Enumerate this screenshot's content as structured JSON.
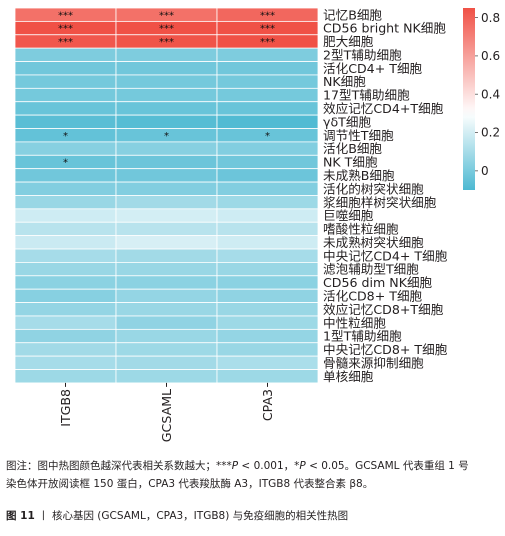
{
  "chart_data": {
    "type": "heatmap",
    "columns": [
      "ITGB8",
      "GCSAML",
      "CPA3"
    ],
    "rows": [
      "记忆B细胞",
      "CD56 bright NK细胞",
      "肥大细胞",
      "2型T辅助细胞",
      "活化CD4+ T细胞",
      "NK细胞",
      "17型T辅助细胞",
      "效应记忆CD4+T细胞",
      "γδT细胞",
      "调节性T细胞",
      "活化B细胞",
      "NK T细胞",
      "未成熟B细胞",
      "活化的树突状细胞",
      "浆细胞样树突状细胞",
      "巨噬细胞",
      "嗜酸性粒细胞",
      "未成熟树突状细胞",
      "中央记忆CD4+ T细胞",
      "滤泡辅助型T细胞",
      "CD56 dim NK细胞",
      "活化CD8+ T细胞",
      "效应记忆CD8+T细胞",
      "中性粒细胞",
      "1型T辅助细胞",
      "中央记忆CD8+ T细胞",
      "骨髓来源抑制细胞",
      "单核细胞"
    ],
    "values": [
      [
        0.75,
        0.75,
        0.78
      ],
      [
        0.85,
        0.86,
        0.85
      ],
      [
        0.83,
        0.84,
        0.85
      ],
      [
        0.01,
        0.01,
        0.01
      ],
      [
        -0.02,
        -0.02,
        -0.02
      ],
      [
        -0.01,
        -0.01,
        -0.01
      ],
      [
        -0.01,
        -0.01,
        -0.01
      ],
      [
        -0.04,
        -0.04,
        -0.04
      ],
      [
        -0.07,
        -0.08,
        -0.09
      ],
      [
        -0.05,
        -0.04,
        -0.04
      ],
      [
        0.03,
        0.03,
        0.02
      ],
      [
        -0.04,
        -0.03,
        -0.02
      ],
      [
        -0.02,
        -0.02,
        -0.03
      ],
      [
        0.02,
        0.02,
        0.02
      ],
      [
        0.07,
        0.09,
        0.08
      ],
      [
        0.19,
        0.2,
        0.19
      ],
      [
        0.14,
        0.14,
        0.14
      ],
      [
        0.18,
        0.21,
        0.19
      ],
      [
        0.1,
        0.09,
        0.1
      ],
      [
        0.07,
        0.07,
        0.07
      ],
      [
        0.04,
        0.04,
        0.04
      ],
      [
        0.03,
        0.06,
        0.05
      ],
      [
        0.06,
        0.07,
        0.07
      ],
      [
        0.1,
        0.05,
        0.08
      ],
      [
        0.05,
        0.07,
        0.06
      ],
      [
        0.09,
        0.08,
        0.07
      ],
      [
        0.1,
        0.09,
        0.11
      ],
      [
        0.08,
        0.08,
        0.08
      ]
    ],
    "stars": [
      [
        "***",
        "***",
        "***"
      ],
      [
        "***",
        "***",
        "***"
      ],
      [
        "***",
        "***",
        "***"
      ],
      [
        "",
        "",
        ""
      ],
      [
        "",
        "",
        ""
      ],
      [
        "",
        "",
        ""
      ],
      [
        "",
        "",
        ""
      ],
      [
        "",
        "",
        ""
      ],
      [
        "",
        "",
        ""
      ],
      [
        "*",
        "*",
        "*"
      ],
      [
        "",
        "",
        ""
      ],
      [
        "*",
        "",
        ""
      ],
      [
        "",
        "",
        ""
      ],
      [
        "",
        "",
        ""
      ],
      [
        "",
        "",
        ""
      ],
      [
        "",
        "",
        ""
      ],
      [
        "",
        "",
        ""
      ],
      [
        "",
        "",
        ""
      ],
      [
        "",
        "",
        ""
      ],
      [
        "",
        "",
        ""
      ],
      [
        "",
        "",
        ""
      ],
      [
        "",
        "",
        ""
      ],
      [
        "",
        "",
        ""
      ],
      [
        "",
        "",
        ""
      ],
      [
        "",
        "",
        ""
      ],
      [
        "",
        "",
        ""
      ],
      [
        "",
        "",
        ""
      ],
      [
        "",
        "",
        ""
      ]
    ],
    "colorbar": {
      "min": -0.1,
      "mid": 0.3,
      "max": 0.85,
      "ticks": [
        0,
        0.2,
        0.4,
        0.6,
        0.8
      ],
      "colors": {
        "low": "#4db9d2",
        "mid": "#ffffff",
        "high": "#f05146"
      }
    }
  },
  "note": {
    "label": "图注：",
    "text1": "图中热图颜色越深代表相关系数越大；",
    "sig1_stars": "***",
    "sig1_p": "P",
    "sig1_rest": " < 0.001，",
    "sig2_star": "*",
    "sig2_p": "P",
    "sig2_rest": " < 0.05。GCSAML 代表重组 1 号",
    "line2": "染色体开放阅读框 150 蛋白，CPA3 代表羧肽酶 A3，ITGB8 代表整合素 β8。"
  },
  "caption": {
    "figure_label": "图 11",
    "separator": "丨",
    "text": "核心基因 (GCSAML，CPA3，ITGB8) 与免疫细胞的相关性热图"
  }
}
